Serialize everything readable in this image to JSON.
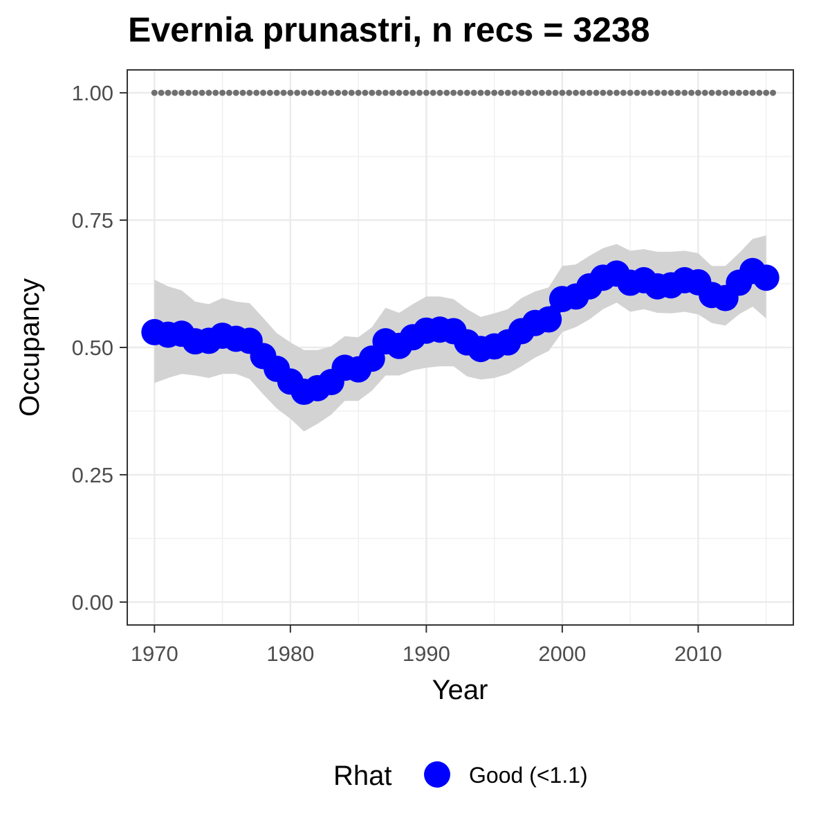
{
  "chart_data": {
    "type": "line",
    "title": "Evernia prunastri, n recs = 3238",
    "xlabel": "Year",
    "ylabel": "Occupancy",
    "xlim": [
      1968,
      2017
    ],
    "ylim": [
      -0.045,
      1.045
    ],
    "x_ticks": [
      1970,
      1980,
      1990,
      2000,
      2010
    ],
    "x_tick_labels": [
      "1970",
      "1980",
      "1990",
      "2000",
      "2010"
    ],
    "y_ticks": [
      0,
      0.25,
      0.5,
      0.75,
      1
    ],
    "y_tick_labels": [
      "0.00",
      "0.25",
      "0.50",
      "0.75",
      "1.00"
    ],
    "grid": true,
    "x": [
      1970,
      1971,
      1972,
      1973,
      1974,
      1975,
      1976,
      1977,
      1978,
      1979,
      1980,
      1981,
      1982,
      1983,
      1984,
      1985,
      1986,
      1987,
      1988,
      1989,
      1990,
      1991,
      1992,
      1993,
      1994,
      1995,
      1996,
      1997,
      1998,
      1999,
      2000,
      2001,
      2002,
      2003,
      2004,
      2005,
      2006,
      2007,
      2008,
      2009,
      2010,
      2011,
      2012,
      2013,
      2014,
      2015
    ],
    "series": [
      {
        "name": "Good (<1.1)",
        "color": "#0000ff",
        "values": [
          0.53,
          0.525,
          0.527,
          0.512,
          0.513,
          0.523,
          0.517,
          0.513,
          0.483,
          0.458,
          0.433,
          0.413,
          0.42,
          0.432,
          0.46,
          0.457,
          0.478,
          0.512,
          0.503,
          0.52,
          0.533,
          0.535,
          0.532,
          0.51,
          0.497,
          0.502,
          0.51,
          0.532,
          0.548,
          0.555,
          0.595,
          0.6,
          0.62,
          0.637,
          0.645,
          0.627,
          0.632,
          0.62,
          0.622,
          0.632,
          0.628,
          0.603,
          0.597,
          0.627,
          0.65,
          0.637
        ],
        "lower": [
          0.43,
          0.44,
          0.448,
          0.445,
          0.44,
          0.448,
          0.448,
          0.438,
          0.408,
          0.38,
          0.36,
          0.335,
          0.35,
          0.368,
          0.395,
          0.395,
          0.415,
          0.445,
          0.445,
          0.455,
          0.46,
          0.463,
          0.463,
          0.443,
          0.437,
          0.44,
          0.448,
          0.463,
          0.48,
          0.493,
          0.53,
          0.54,
          0.555,
          0.575,
          0.588,
          0.57,
          0.575,
          0.568,
          0.567,
          0.57,
          0.565,
          0.548,
          0.543,
          0.565,
          0.58,
          0.557
        ],
        "upper": [
          0.633,
          0.62,
          0.612,
          0.59,
          0.585,
          0.597,
          0.59,
          0.587,
          0.558,
          0.528,
          0.51,
          0.495,
          0.495,
          0.502,
          0.522,
          0.52,
          0.54,
          0.578,
          0.568,
          0.585,
          0.6,
          0.6,
          0.595,
          0.575,
          0.56,
          0.567,
          0.575,
          0.597,
          0.61,
          0.618,
          0.66,
          0.663,
          0.68,
          0.695,
          0.703,
          0.69,
          0.693,
          0.688,
          0.688,
          0.69,
          0.685,
          0.66,
          0.66,
          0.685,
          0.713,
          0.72
        ]
      }
    ],
    "reference_line": {
      "y": 1.0,
      "color": "#707070",
      "x": [
        1970,
        1971,
        1972,
        1973,
        1974,
        1975,
        1976,
        1977,
        1978,
        1979,
        1980,
        1981,
        1982,
        1983,
        1984,
        1985,
        1986,
        1987,
        1988,
        1989,
        1990,
        1991,
        1992,
        1993,
        1994,
        1995,
        1996,
        1997,
        1998,
        1999,
        2000,
        2001,
        2002,
        2003,
        2004,
        2005,
        2006,
        2007,
        2008,
        2009,
        2010,
        2011,
        2012,
        2013,
        2014,
        2015
      ]
    },
    "ribbon_color": "#d3d3d3",
    "legend": {
      "position": "bottom",
      "title": "Rhat",
      "entries": [
        {
          "label": "Good (<1.1)",
          "color": "#0000ff"
        }
      ]
    }
  }
}
